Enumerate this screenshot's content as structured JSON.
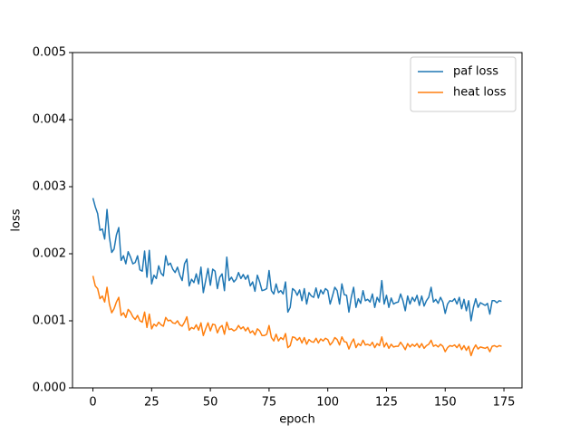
{
  "chart_data": {
    "type": "line",
    "xlabel": "epoch",
    "ylabel": "loss",
    "x": [
      0,
      1,
      2,
      3,
      4,
      5,
      6,
      7,
      8,
      9,
      10,
      11,
      12,
      13,
      14,
      15,
      16,
      17,
      18,
      19,
      20,
      21,
      22,
      23,
      24,
      25,
      26,
      27,
      28,
      29,
      30,
      31,
      32,
      33,
      34,
      35,
      36,
      37,
      38,
      39,
      40,
      41,
      42,
      43,
      44,
      45,
      46,
      47,
      48,
      49,
      50,
      51,
      52,
      53,
      54,
      55,
      56,
      57,
      58,
      59,
      60,
      61,
      62,
      63,
      64,
      65,
      66,
      67,
      68,
      69,
      70,
      71,
      72,
      73,
      74,
      75,
      76,
      77,
      78,
      79,
      80,
      81,
      82,
      83,
      84,
      85,
      86,
      87,
      88,
      89,
      90,
      91,
      92,
      93,
      94,
      95,
      96,
      97,
      98,
      99,
      100,
      101,
      102,
      103,
      104,
      105,
      106,
      107,
      108,
      109,
      110,
      111,
      112,
      113,
      114,
      115,
      116,
      117,
      118,
      119,
      120,
      121,
      122,
      123,
      124,
      125,
      126,
      127,
      128,
      129,
      130,
      131,
      132,
      133,
      134,
      135,
      136,
      137,
      138,
      139,
      140,
      141,
      142,
      143,
      144,
      145,
      146,
      147,
      148,
      149,
      150,
      151,
      152,
      153,
      154,
      155,
      156,
      157,
      158,
      159,
      160,
      161,
      162,
      163,
      164,
      165,
      166,
      167,
      168,
      169,
      170,
      171,
      172,
      173,
      174
    ],
    "series": [
      {
        "name": "paf loss",
        "color": "#1f77b4",
        "values": [
          0.00283,
          0.0027,
          0.0026,
          0.00235,
          0.00237,
          0.00222,
          0.00266,
          0.00225,
          0.00202,
          0.00207,
          0.00228,
          0.00239,
          0.0019,
          0.00197,
          0.00185,
          0.00203,
          0.00195,
          0.00185,
          0.00187,
          0.00197,
          0.00176,
          0.00174,
          0.00204,
          0.00165,
          0.00205,
          0.00155,
          0.00168,
          0.00163,
          0.00182,
          0.00171,
          0.00167,
          0.00197,
          0.00183,
          0.00186,
          0.00177,
          0.00172,
          0.0018,
          0.00168,
          0.0016,
          0.00185,
          0.00192,
          0.00152,
          0.00162,
          0.00157,
          0.0017,
          0.00155,
          0.0018,
          0.00142,
          0.0016,
          0.00178,
          0.00153,
          0.00177,
          0.00174,
          0.00148,
          0.00165,
          0.0017,
          0.00145,
          0.00195,
          0.0016,
          0.00165,
          0.00158,
          0.00162,
          0.00172,
          0.00163,
          0.00169,
          0.00162,
          0.00168,
          0.00152,
          0.00158,
          0.00144,
          0.00168,
          0.00158,
          0.00145,
          0.00146,
          0.00148,
          0.00175,
          0.00145,
          0.0014,
          0.00155,
          0.00142,
          0.00145,
          0.0014,
          0.00158,
          0.00113,
          0.0012,
          0.00148,
          0.00145,
          0.00138,
          0.00146,
          0.0013,
          0.00148,
          0.00125,
          0.00142,
          0.00137,
          0.00135,
          0.00149,
          0.00134,
          0.00146,
          0.0014,
          0.00148,
          0.00145,
          0.00125,
          0.00137,
          0.0015,
          0.00145,
          0.00125,
          0.00155,
          0.00139,
          0.00138,
          0.00113,
          0.00135,
          0.0015,
          0.0012,
          0.00133,
          0.00126,
          0.00145,
          0.0013,
          0.00132,
          0.00128,
          0.0014,
          0.0012,
          0.00135,
          0.00128,
          0.0016,
          0.00125,
          0.00138,
          0.0012,
          0.00134,
          0.00125,
          0.00127,
          0.00128,
          0.0014,
          0.0013,
          0.00115,
          0.00137,
          0.00125,
          0.00135,
          0.00129,
          0.00138,
          0.00123,
          0.00137,
          0.00122,
          0.0013,
          0.00135,
          0.0015,
          0.00128,
          0.00132,
          0.00126,
          0.00135,
          0.00128,
          0.00111,
          0.00125,
          0.0013,
          0.00129,
          0.00133,
          0.00125,
          0.00135,
          0.00118,
          0.00132,
          0.00115,
          0.0013,
          0.001,
          0.0012,
          0.00133,
          0.0012,
          0.00127,
          0.00125,
          0.00123,
          0.00126,
          0.0011,
          0.0013,
          0.0013,
          0.00127,
          0.0013,
          0.00129
        ]
      },
      {
        "name": "heat loss",
        "color": "#ff7f0e",
        "values": [
          0.00167,
          0.00152,
          0.00148,
          0.00133,
          0.00137,
          0.00128,
          0.0015,
          0.00125,
          0.00112,
          0.00118,
          0.00128,
          0.00135,
          0.00108,
          0.00112,
          0.00105,
          0.00117,
          0.00113,
          0.00106,
          0.00102,
          0.00108,
          0.001,
          0.00098,
          0.00113,
          0.0009,
          0.0011,
          0.00088,
          0.00095,
          0.00092,
          0.00098,
          0.00094,
          0.00092,
          0.00105,
          0.001,
          0.00101,
          0.00097,
          0.00096,
          0.001,
          0.00094,
          0.00092,
          0.00098,
          0.00106,
          0.00086,
          0.0009,
          0.00088,
          0.00094,
          0.00086,
          0.00097,
          0.00078,
          0.00088,
          0.00097,
          0.00085,
          0.00095,
          0.00094,
          0.00082,
          0.0009,
          0.00093,
          0.0008,
          0.00098,
          0.00087,
          0.00088,
          0.00085,
          0.00087,
          0.00093,
          0.00088,
          0.00091,
          0.00085,
          0.0009,
          0.00082,
          0.00085,
          0.00079,
          0.00088,
          0.00085,
          0.00078,
          0.00078,
          0.0008,
          0.00093,
          0.00075,
          0.0007,
          0.0008,
          0.0007,
          0.00075,
          0.00072,
          0.00081,
          0.0006,
          0.00063,
          0.00076,
          0.00075,
          0.00071,
          0.00075,
          0.00067,
          0.00075,
          0.00065,
          0.00072,
          0.00069,
          0.00068,
          0.00074,
          0.00067,
          0.00073,
          0.0007,
          0.00074,
          0.00072,
          0.00064,
          0.00068,
          0.00075,
          0.00072,
          0.00064,
          0.00076,
          0.00069,
          0.00068,
          0.00058,
          0.00067,
          0.00073,
          0.0006,
          0.00066,
          0.00063,
          0.00071,
          0.00064,
          0.00065,
          0.00063,
          0.00068,
          0.0006,
          0.00066,
          0.00063,
          0.00076,
          0.00061,
          0.00067,
          0.00059,
          0.00065,
          0.00061,
          0.00062,
          0.00062,
          0.00068,
          0.00063,
          0.00057,
          0.00066,
          0.00061,
          0.00065,
          0.00062,
          0.00066,
          0.0006,
          0.00066,
          0.00059,
          0.00063,
          0.00065,
          0.00071,
          0.00062,
          0.00064,
          0.00061,
          0.00065,
          0.00062,
          0.00054,
          0.0006,
          0.00063,
          0.00062,
          0.00064,
          0.0006,
          0.00065,
          0.00057,
          0.00063,
          0.00056,
          0.00062,
          0.00048,
          0.00058,
          0.00064,
          0.00058,
          0.00061,
          0.0006,
          0.00059,
          0.00061,
          0.00054,
          0.00062,
          0.00063,
          0.00061,
          0.00063,
          0.00062
        ]
      }
    ],
    "xlim": [
      -8.7,
      182.7
    ],
    "xticks": [
      0,
      25,
      50,
      75,
      100,
      125,
      150,
      175
    ],
    "ylim": [
      0,
      0.005
    ],
    "yticks": [
      {
        "value": 0,
        "label": "0.000"
      },
      {
        "value": 0.001,
        "label": "0.001"
      },
      {
        "value": 0.002,
        "label": "0.002"
      },
      {
        "value": 0.003,
        "label": "0.003"
      },
      {
        "value": 0.004,
        "label": "0.004"
      },
      {
        "value": 0.005,
        "label": "0.005"
      }
    ],
    "grid": false,
    "legend": "upper right"
  }
}
